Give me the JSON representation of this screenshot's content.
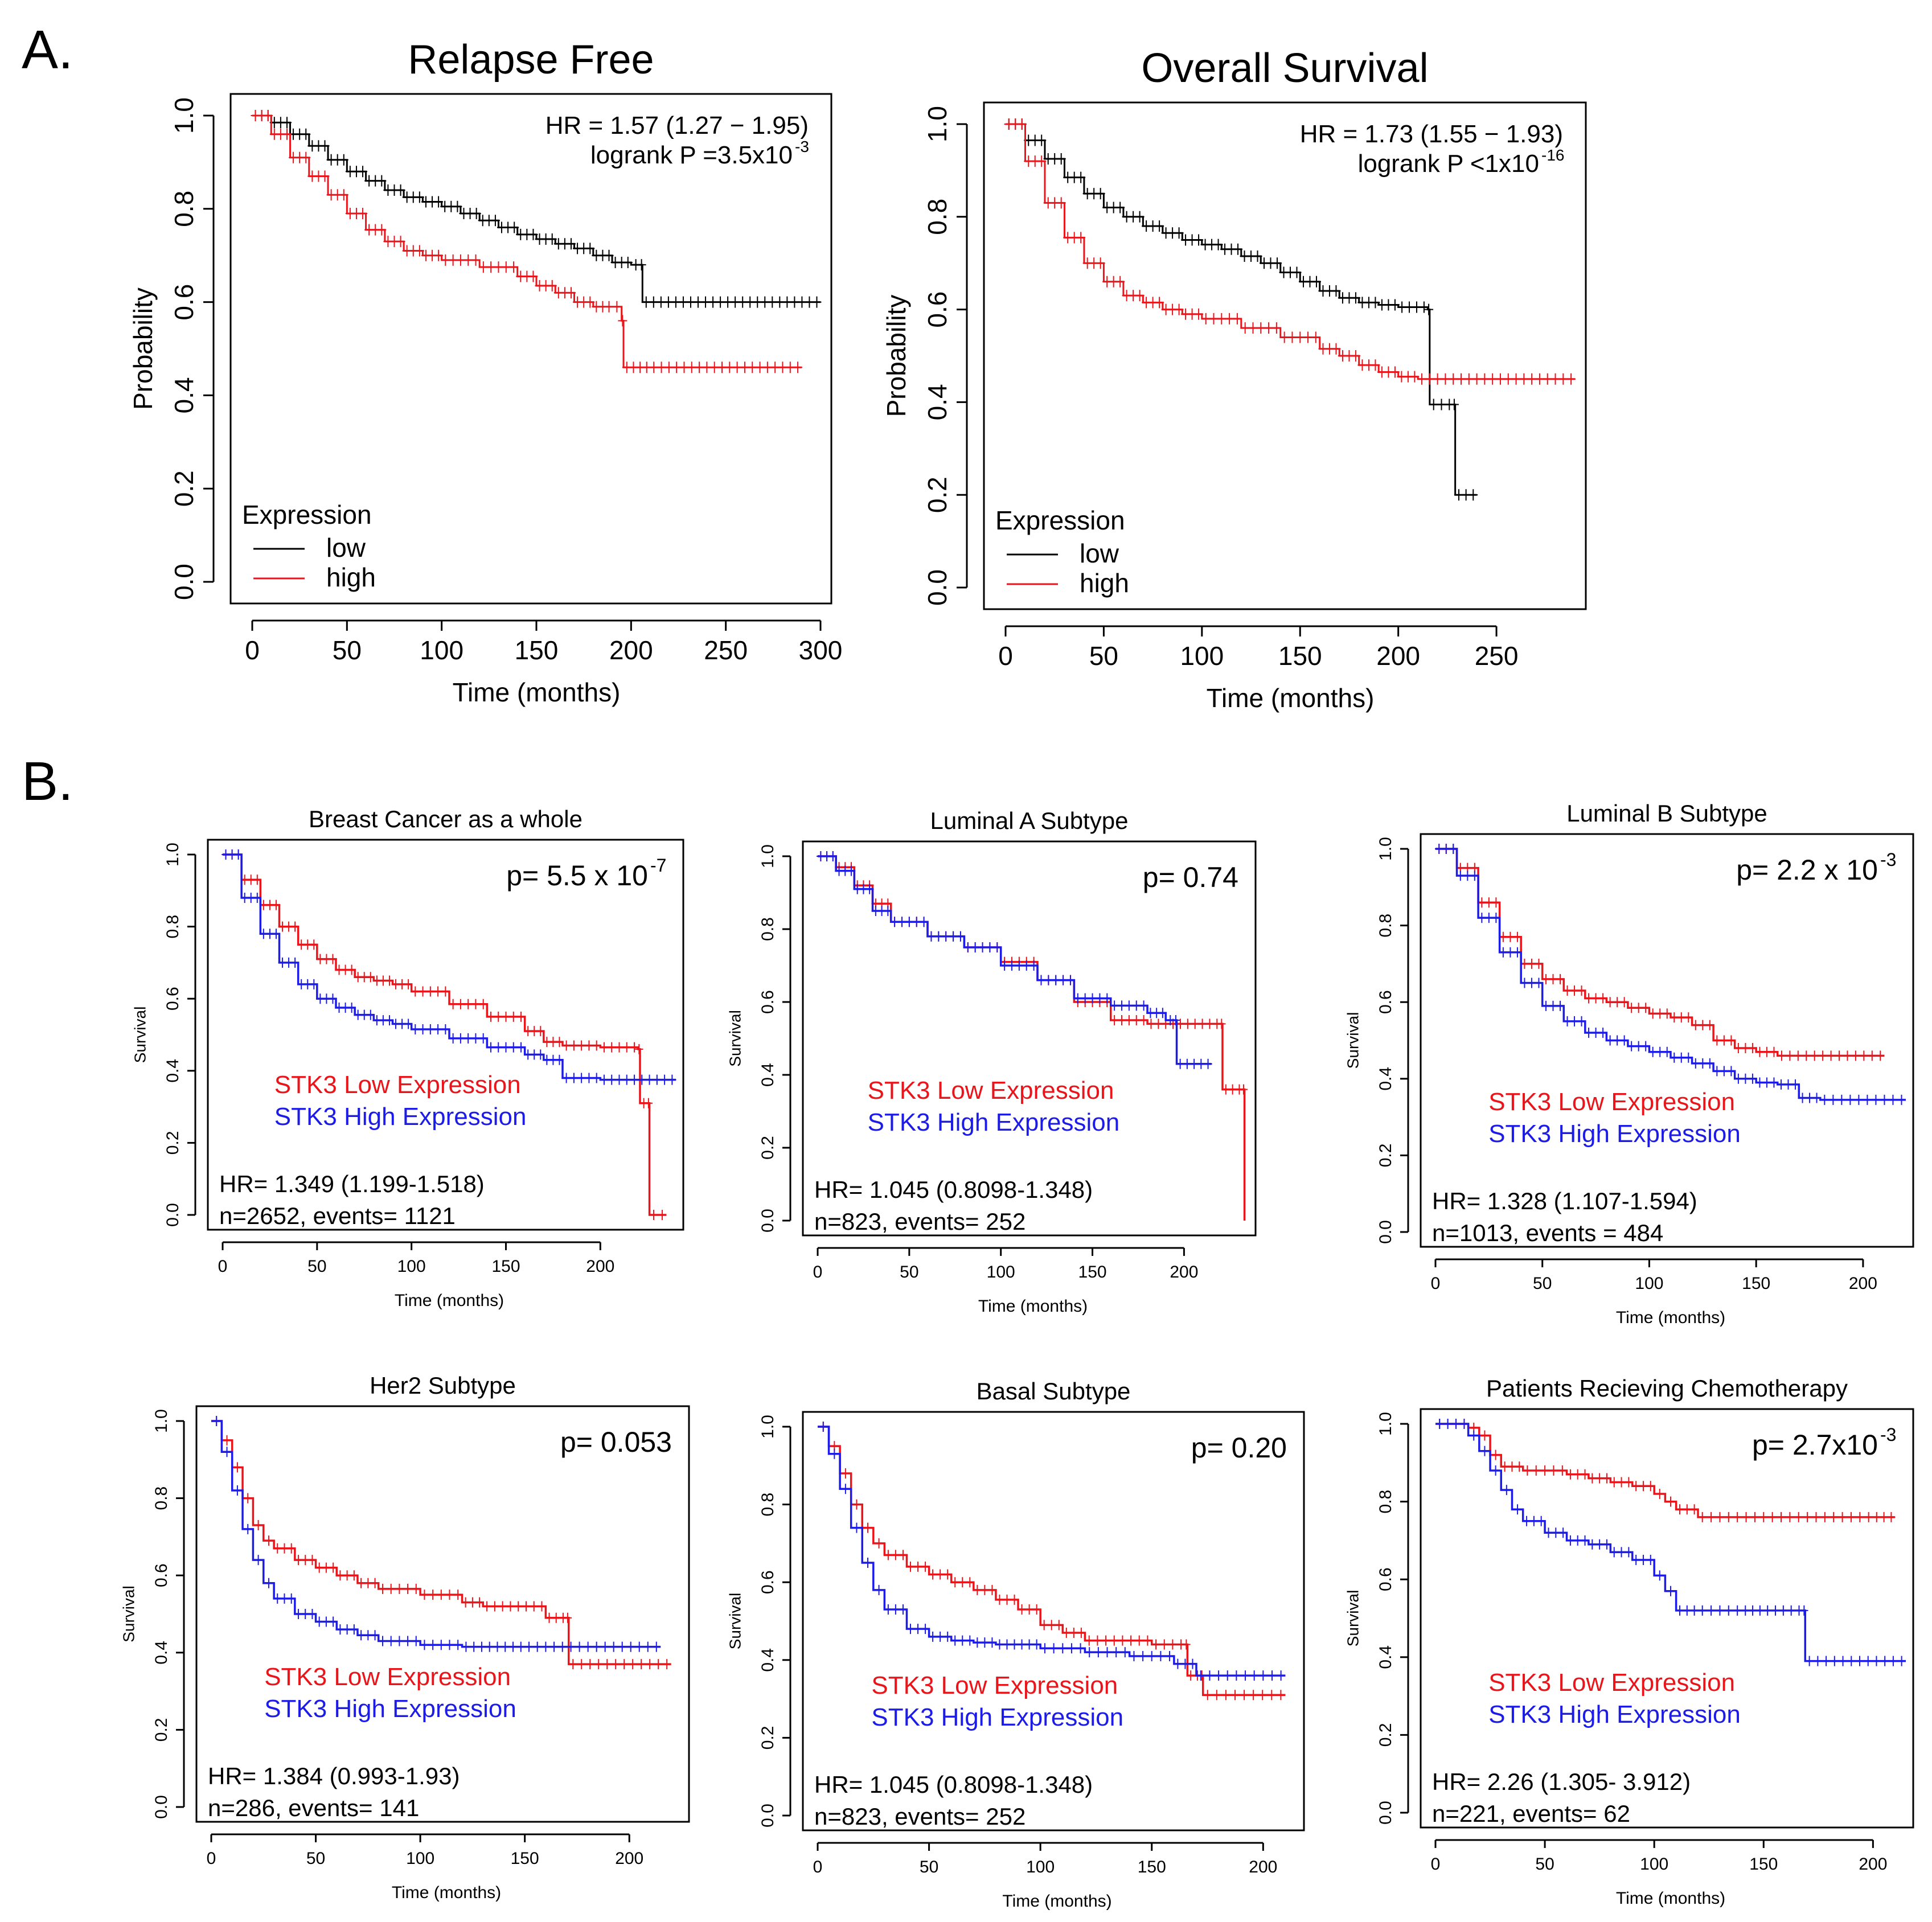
{
  "figure": {
    "label_a": "A.",
    "label_b": "B."
  },
  "colors": {
    "red": "#e8151b",
    "black": "#000000",
    "blue": "#1c1ce6"
  },
  "chart_data": [
    {
      "id": "relapse-free",
      "type": "line",
      "subtype": "kaplan-meier",
      "title": "Relapse Free",
      "xlabel": "Time (months)",
      "ylabel": "Probability",
      "xlim": [
        0,
        300
      ],
      "ylim": [
        0,
        1
      ],
      "xticks": [
        0,
        50,
        100,
        150,
        200,
        250,
        300
      ],
      "yticks": [
        0.0,
        0.2,
        0.4,
        0.6,
        0.8,
        1.0
      ],
      "annotation_lines": [
        "HR = 1.57 (1.27 − 1.95)",
        "logrank P =3.5x10"
      ],
      "annotation_sup": "-3",
      "legend_title": "Expression",
      "series": [
        {
          "name": "low",
          "color": "#000000",
          "x": [
            0,
            10,
            20,
            30,
            40,
            50,
            60,
            70,
            80,
            90,
            100,
            110,
            120,
            130,
            140,
            150,
            160,
            170,
            180,
            190,
            200,
            205,
            206,
            300
          ],
          "y": [
            1.0,
            0.985,
            0.96,
            0.935,
            0.905,
            0.88,
            0.86,
            0.84,
            0.825,
            0.815,
            0.805,
            0.79,
            0.775,
            0.76,
            0.745,
            0.735,
            0.725,
            0.715,
            0.7,
            0.685,
            0.68,
            0.68,
            0.6,
            0.6
          ]
        },
        {
          "name": "high",
          "color": "#e8151b",
          "x": [
            0,
            10,
            20,
            30,
            40,
            50,
            60,
            70,
            80,
            90,
            100,
            120,
            140,
            150,
            160,
            170,
            180,
            190,
            195,
            196,
            210,
            290
          ],
          "y": [
            1.0,
            0.96,
            0.91,
            0.87,
            0.83,
            0.79,
            0.755,
            0.73,
            0.71,
            0.7,
            0.69,
            0.675,
            0.655,
            0.635,
            0.62,
            0.6,
            0.59,
            0.59,
            0.56,
            0.46,
            0.46,
            0.46
          ]
        }
      ]
    },
    {
      "id": "overall-survival",
      "type": "line",
      "subtype": "kaplan-meier",
      "title": "Overall Survival",
      "xlabel": "Time (months)",
      "ylabel": "Probability",
      "xlim": [
        0,
        290
      ],
      "ylim": [
        0,
        1
      ],
      "xticks": [
        0,
        50,
        100,
        150,
        200,
        250
      ],
      "yticks": [
        0.0,
        0.2,
        0.4,
        0.6,
        0.8,
        1.0
      ],
      "annotation_lines": [
        "HR = 1.73 (1.55 − 1.93)",
        "logrank P <1x10"
      ],
      "annotation_sup": "-16",
      "legend_title": "Expression",
      "series": [
        {
          "name": "low",
          "color": "#000000",
          "x": [
            0,
            10,
            20,
            30,
            40,
            50,
            60,
            70,
            80,
            90,
            100,
            110,
            120,
            130,
            140,
            150,
            160,
            170,
            180,
            190,
            200,
            215,
            216,
            228,
            229,
            240
          ],
          "y": [
            1.0,
            0.965,
            0.925,
            0.885,
            0.85,
            0.82,
            0.8,
            0.78,
            0.765,
            0.75,
            0.74,
            0.73,
            0.715,
            0.7,
            0.68,
            0.66,
            0.64,
            0.625,
            0.615,
            0.61,
            0.605,
            0.6,
            0.395,
            0.395,
            0.2,
            0.2
          ]
        },
        {
          "name": "high",
          "color": "#e8151b",
          "x": [
            0,
            10,
            20,
            30,
            40,
            50,
            60,
            70,
            80,
            90,
            100,
            120,
            140,
            160,
            170,
            180,
            190,
            200,
            210,
            290
          ],
          "y": [
            1.0,
            0.92,
            0.83,
            0.755,
            0.7,
            0.66,
            0.63,
            0.615,
            0.6,
            0.59,
            0.58,
            0.56,
            0.54,
            0.515,
            0.5,
            0.48,
            0.465,
            0.455,
            0.45,
            0.45
          ]
        }
      ]
    },
    {
      "id": "breast-cancer-whole",
      "type": "line",
      "subtype": "kaplan-meier",
      "title": "Breast Cancer as a whole",
      "xlabel": "Time (months)",
      "ylabel": "Survival",
      "xlim": [
        0,
        240
      ],
      "ylim": [
        0,
        1
      ],
      "xticks": [
        0,
        50,
        100,
        150,
        200
      ],
      "yticks": [
        0.0,
        0.2,
        0.4,
        0.6,
        0.8,
        1.0
      ],
      "p_text": "p= 5.5 x 10",
      "p_sup": "-7",
      "legend": [
        "STK3 Low Expression",
        "STK3 High Expression"
      ],
      "hr_lines": [
        "HR= 1.349 (1.199-1.518)",
        "n=2652, events= 1121"
      ],
      "series": [
        {
          "name": "STK3 Low Expression",
          "color": "#e8151b",
          "x": [
            0,
            10,
            20,
            30,
            40,
            50,
            60,
            70,
            80,
            90,
            100,
            120,
            140,
            160,
            170,
            180,
            200,
            220,
            221,
            225,
            226,
            235
          ],
          "y": [
            1.0,
            0.93,
            0.86,
            0.8,
            0.75,
            0.71,
            0.68,
            0.66,
            0.65,
            0.64,
            0.62,
            0.585,
            0.55,
            0.51,
            0.48,
            0.47,
            0.465,
            0.46,
            0.31,
            0.31,
            0.0,
            0.0
          ]
        },
        {
          "name": "STK3 High Expression",
          "color": "#1c1ce6",
          "x": [
            0,
            10,
            20,
            30,
            40,
            50,
            60,
            70,
            80,
            90,
            100,
            120,
            140,
            160,
            170,
            180,
            200,
            220,
            240
          ],
          "y": [
            1.0,
            0.88,
            0.78,
            0.7,
            0.64,
            0.6,
            0.575,
            0.555,
            0.54,
            0.53,
            0.515,
            0.49,
            0.465,
            0.445,
            0.43,
            0.38,
            0.375,
            0.375,
            0.375
          ]
        }
      ]
    },
    {
      "id": "luminal-a",
      "type": "line",
      "subtype": "kaplan-meier",
      "title": "Luminal A Subtype",
      "xlabel": "Time (months)",
      "ylabel": "Survival",
      "xlim": [
        0,
        235
      ],
      "ylim": [
        0,
        1
      ],
      "xticks": [
        0,
        50,
        100,
        150,
        200
      ],
      "yticks": [
        0.0,
        0.2,
        0.4,
        0.6,
        0.8,
        1.0
      ],
      "p_text": "p= 0.74",
      "p_sup": "",
      "legend": [
        "STK3 Low Expression",
        "STK3 High Expression"
      ],
      "hr_lines": [
        "HR= 1.045 (0.8098-1.348)",
        "n=823, events= 252"
      ],
      "series": [
        {
          "name": "STK3 Low Expression",
          "color": "#e8151b",
          "x": [
            0,
            10,
            20,
            30,
            40,
            60,
            80,
            100,
            120,
            140,
            160,
            180,
            200,
            220,
            221,
            232,
            233
          ],
          "y": [
            1.0,
            0.97,
            0.92,
            0.87,
            0.82,
            0.78,
            0.75,
            0.71,
            0.66,
            0.6,
            0.55,
            0.54,
            0.54,
            0.54,
            0.36,
            0.36,
            0.0
          ]
        },
        {
          "name": "STK3 High Expression",
          "color": "#1c1ce6",
          "x": [
            0,
            10,
            20,
            30,
            40,
            60,
            80,
            100,
            120,
            140,
            160,
            180,
            190,
            195,
            196,
            215
          ],
          "y": [
            1.0,
            0.96,
            0.91,
            0.85,
            0.82,
            0.78,
            0.75,
            0.7,
            0.66,
            0.61,
            0.59,
            0.57,
            0.55,
            0.55,
            0.43,
            0.43
          ]
        }
      ]
    },
    {
      "id": "luminal-b",
      "type": "line",
      "subtype": "kaplan-meier",
      "title": "Luminal B Subtype",
      "xlabel": "Time (months)",
      "ylabel": "Survival",
      "xlim": [
        0,
        220
      ],
      "ylim": [
        0,
        1
      ],
      "xticks": [
        0,
        50,
        100,
        150,
        200
      ],
      "yticks": [
        0.0,
        0.2,
        0.4,
        0.6,
        0.8,
        1.0
      ],
      "p_text": "p= 2.2 x 10",
      "p_sup": "-3",
      "legend": [
        "STK3 Low Expression",
        "STK3 High Expression"
      ],
      "hr_lines": [
        "HR= 1.328 (1.107-1.594)",
        "n=1013, events = 484"
      ],
      "series": [
        {
          "name": "STK3 Low Expression",
          "color": "#e8151b",
          "x": [
            0,
            10,
            20,
            30,
            40,
            50,
            60,
            70,
            80,
            90,
            100,
            110,
            120,
            130,
            140,
            150,
            160,
            210
          ],
          "y": [
            1.0,
            0.95,
            0.86,
            0.77,
            0.7,
            0.66,
            0.63,
            0.61,
            0.6,
            0.585,
            0.57,
            0.56,
            0.54,
            0.5,
            0.48,
            0.47,
            0.46,
            0.46
          ]
        },
        {
          "name": "STK3 High Expression",
          "color": "#1c1ce6",
          "x": [
            0,
            10,
            20,
            30,
            40,
            50,
            60,
            70,
            80,
            90,
            100,
            110,
            120,
            130,
            140,
            150,
            160,
            170,
            180,
            220
          ],
          "y": [
            1.0,
            0.93,
            0.82,
            0.73,
            0.65,
            0.59,
            0.55,
            0.52,
            0.5,
            0.485,
            0.47,
            0.455,
            0.44,
            0.42,
            0.4,
            0.39,
            0.385,
            0.35,
            0.345,
            0.345
          ]
        }
      ]
    },
    {
      "id": "her2",
      "type": "line",
      "subtype": "kaplan-meier",
      "title": "Her2 Subtype",
      "xlabel": "Time (months)",
      "ylabel": "Survival",
      "xlim": [
        0,
        225
      ],
      "ylim": [
        0,
        1
      ],
      "xticks": [
        0,
        50,
        100,
        150,
        200
      ],
      "yticks": [
        0.0,
        0.2,
        0.4,
        0.6,
        0.8,
        1.0
      ],
      "p_text": "p= 0.053",
      "p_sup": "",
      "legend": [
        "STK3 Low Expression",
        "STK3 High Expression"
      ],
      "hr_lines": [
        "HR= 1.384 (0.993-1.93)",
        "n=286, events= 141"
      ],
      "series": [
        {
          "name": "STK3 Low Expression",
          "color": "#e8151b",
          "x": [
            0,
            5,
            10,
            15,
            20,
            25,
            30,
            40,
            50,
            60,
            70,
            80,
            100,
            120,
            130,
            160,
            170,
            171,
            220
          ],
          "y": [
            1.0,
            0.95,
            0.88,
            0.8,
            0.73,
            0.69,
            0.67,
            0.64,
            0.62,
            0.6,
            0.58,
            0.565,
            0.55,
            0.53,
            0.52,
            0.49,
            0.49,
            0.37,
            0.37
          ]
        },
        {
          "name": "STK3 High Expression",
          "color": "#1c1ce6",
          "x": [
            0,
            5,
            10,
            15,
            20,
            25,
            30,
            40,
            50,
            60,
            70,
            80,
            100,
            120,
            150,
            170,
            215
          ],
          "y": [
            1.0,
            0.92,
            0.82,
            0.72,
            0.64,
            0.58,
            0.54,
            0.5,
            0.48,
            0.46,
            0.445,
            0.43,
            0.42,
            0.415,
            0.415,
            0.415,
            0.415
          ]
        }
      ]
    },
    {
      "id": "basal",
      "type": "line",
      "subtype": "kaplan-meier",
      "title": "Basal Subtype",
      "xlabel": "Time (months)",
      "ylabel": "Survival",
      "xlim": [
        0,
        215
      ],
      "ylim": [
        0,
        1
      ],
      "xticks": [
        0,
        50,
        100,
        150,
        200
      ],
      "yticks": [
        0.0,
        0.2,
        0.4,
        0.6,
        0.8,
        1.0
      ],
      "p_text": "p= 0.20",
      "p_sup": "",
      "legend": [
        "STK3 Low Expression",
        "STK3 High Expression"
      ],
      "hr_lines": [
        "HR= 1.045 (0.8098-1.348)",
        "n=823, events= 252"
      ],
      "series": [
        {
          "name": "STK3 Low Expression",
          "color": "#e8151b",
          "x": [
            0,
            5,
            10,
            15,
            20,
            25,
            30,
            40,
            50,
            60,
            70,
            80,
            90,
            100,
            110,
            120,
            150,
            165,
            166,
            172,
            173,
            210
          ],
          "y": [
            1.0,
            0.95,
            0.88,
            0.8,
            0.74,
            0.7,
            0.67,
            0.64,
            0.62,
            0.6,
            0.58,
            0.555,
            0.53,
            0.49,
            0.47,
            0.45,
            0.44,
            0.44,
            0.36,
            0.36,
            0.31,
            0.31
          ]
        },
        {
          "name": "STK3 High Expression",
          "color": "#1c1ce6",
          "x": [
            0,
            5,
            10,
            15,
            20,
            25,
            30,
            40,
            50,
            60,
            70,
            80,
            90,
            100,
            120,
            140,
            160,
            170,
            210
          ],
          "y": [
            1.0,
            0.93,
            0.84,
            0.74,
            0.65,
            0.58,
            0.53,
            0.48,
            0.46,
            0.45,
            0.445,
            0.44,
            0.44,
            0.43,
            0.42,
            0.41,
            0.39,
            0.36,
            0.36
          ]
        }
      ]
    },
    {
      "id": "chemotherapy",
      "type": "line",
      "subtype": "kaplan-meier",
      "title": "Patients Recieving Chemotherapy",
      "xlabel": "Time (months)",
      "ylabel": "Survival",
      "xlim": [
        0,
        215
      ],
      "ylim": [
        0,
        1
      ],
      "xticks": [
        0,
        50,
        100,
        150,
        200
      ],
      "yticks": [
        0.0,
        0.2,
        0.4,
        0.6,
        0.8,
        1.0
      ],
      "p_text": "p= 2.7x10",
      "p_sup": "-3",
      "legend": [
        "STK3 Low Expression",
        "STK3 High Expression"
      ],
      "hr_lines": [
        "HR= 2.26 (1.305- 3.912)",
        "n=221, events= 62"
      ],
      "series": [
        {
          "name": "STK3 Low Expression",
          "color": "#e8151b",
          "x": [
            0,
            15,
            20,
            25,
            30,
            40,
            60,
            70,
            80,
            90,
            100,
            105,
            110,
            120,
            140,
            200,
            210
          ],
          "y": [
            1.0,
            0.99,
            0.97,
            0.92,
            0.89,
            0.88,
            0.87,
            0.86,
            0.85,
            0.84,
            0.82,
            0.8,
            0.78,
            0.76,
            0.76,
            0.76,
            0.76
          ]
        },
        {
          "name": "STK3 High Expression",
          "color": "#1c1ce6",
          "x": [
            0,
            15,
            20,
            25,
            30,
            35,
            40,
            50,
            60,
            70,
            80,
            90,
            100,
            105,
            110,
            120,
            140,
            150,
            168,
            169,
            215
          ],
          "y": [
            1.0,
            0.97,
            0.93,
            0.88,
            0.83,
            0.78,
            0.75,
            0.72,
            0.7,
            0.69,
            0.67,
            0.65,
            0.61,
            0.57,
            0.52,
            0.52,
            0.52,
            0.52,
            0.52,
            0.39,
            0.39
          ]
        }
      ]
    }
  ]
}
